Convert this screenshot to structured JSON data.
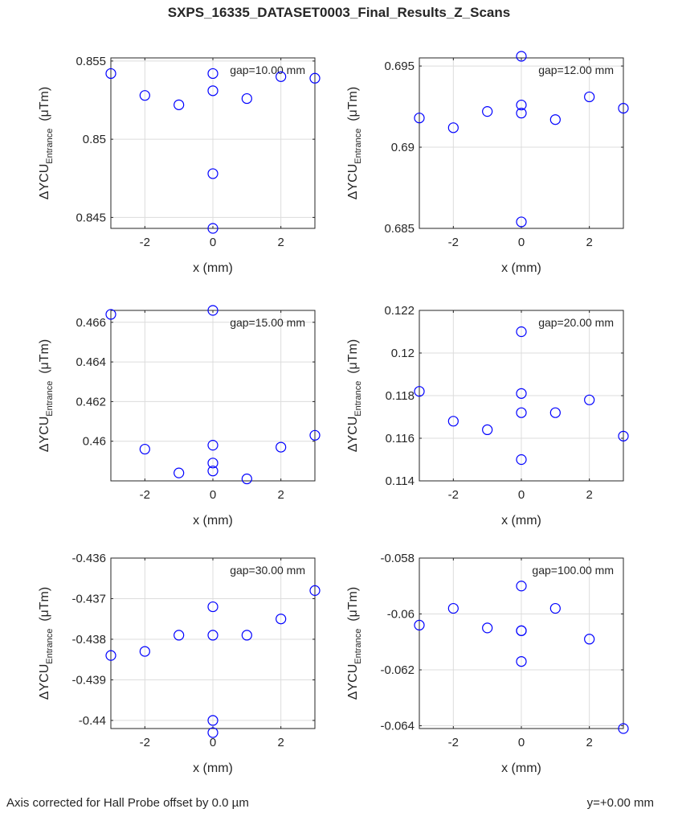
{
  "title": "SXPS_16335_DATASET0003_Final_Results_Z_Scans",
  "footer": {
    "left": "Axis corrected for Hall Probe offset by 0.0 µm",
    "right": "y=+0.00 mm"
  },
  "colors": {
    "marker": "#0000ff",
    "axis": "#262626",
    "grid": "#dcdcdc"
  },
  "chart_data": [
    {
      "type": "scatter",
      "annotation": "gap=10.00 mm",
      "xlabel": "x (mm)",
      "ylabel_main": "ΔYCU",
      "ylabel_sub": "Entrance",
      "ylabel_unit": "(μTm)",
      "xlim": [
        -3,
        3
      ],
      "ylim": [
        0.8443,
        0.8552
      ],
      "grid": true,
      "xticks": [
        -2,
        0,
        2
      ],
      "xtick_labels": [
        "-2",
        "0",
        "2"
      ],
      "yticks": [
        0.845,
        0.85,
        0.855
      ],
      "ytick_labels": [
        "0.845",
        "0.85",
        "0.855"
      ],
      "x": [
        -3,
        -2,
        -1,
        0,
        0,
        0,
        0,
        1,
        2,
        3
      ],
      "y": [
        0.8542,
        0.8528,
        0.8522,
        0.8542,
        0.8531,
        0.8478,
        0.8443,
        0.8526,
        0.854,
        0.8539
      ]
    },
    {
      "type": "scatter",
      "annotation": "gap=12.00 mm",
      "xlabel": "x (mm)",
      "ylabel_main": "ΔYCU",
      "ylabel_sub": "Entrance",
      "ylabel_unit": "(μTm)",
      "xlim": [
        -3,
        3
      ],
      "ylim": [
        0.685,
        0.6955
      ],
      "grid": true,
      "xticks": [
        -2,
        0,
        2
      ],
      "xtick_labels": [
        "-2",
        "0",
        "2"
      ],
      "yticks": [
        0.685,
        0.69,
        0.695
      ],
      "ytick_labels": [
        "0.685",
        "0.69",
        "0.695"
      ],
      "x": [
        -3,
        -2,
        -1,
        0,
        0,
        0,
        0,
        1,
        2,
        3
      ],
      "y": [
        0.6918,
        0.6912,
        0.6922,
        0.6956,
        0.6926,
        0.6921,
        0.6854,
        0.6917,
        0.6931,
        0.6924
      ]
    },
    {
      "type": "scatter",
      "annotation": "gap=15.00 mm",
      "xlabel": "x (mm)",
      "ylabel_main": "ΔYCU",
      "ylabel_sub": "Entrance",
      "ylabel_unit": "(μTm)",
      "xlim": [
        -3,
        3
      ],
      "ylim": [
        0.458,
        0.4666
      ],
      "grid": true,
      "xticks": [
        -2,
        0,
        2
      ],
      "xtick_labels": [
        "-2",
        "0",
        "2"
      ],
      "yticks": [
        0.46,
        0.462,
        0.464,
        0.466
      ],
      "ytick_labels": [
        "0.46",
        "0.462",
        "0.464",
        "0.466"
      ],
      "x": [
        -3,
        -2,
        -1,
        0,
        0,
        0,
        0,
        1,
        2,
        3
      ],
      "y": [
        0.4664,
        0.4596,
        0.4584,
        0.4666,
        0.4598,
        0.4589,
        0.4585,
        0.4581,
        0.4597,
        0.4603
      ]
    },
    {
      "type": "scatter",
      "annotation": "gap=20.00 mm",
      "xlabel": "x (mm)",
      "ylabel_main": "ΔYCU",
      "ylabel_sub": "Entrance",
      "ylabel_unit": "(μTm)",
      "xlim": [
        -3,
        3
      ],
      "ylim": [
        0.114,
        0.122
      ],
      "grid": true,
      "xticks": [
        -2,
        0,
        2
      ],
      "xtick_labels": [
        "-2",
        "0",
        "2"
      ],
      "yticks": [
        0.114,
        0.116,
        0.118,
        0.12,
        0.122
      ],
      "ytick_labels": [
        "0.114",
        "0.116",
        "0.118",
        "0.12",
        "0.122"
      ],
      "x": [
        -3,
        -2,
        -1,
        0,
        0,
        0,
        0,
        1,
        2,
        3
      ],
      "y": [
        0.1182,
        0.1168,
        0.1164,
        0.121,
        0.1181,
        0.1172,
        0.115,
        0.1172,
        0.1178,
        0.1161
      ]
    },
    {
      "type": "scatter",
      "annotation": "gap=30.00 mm",
      "xlabel": "x (mm)",
      "ylabel_main": "ΔYCU",
      "ylabel_sub": "Entrance",
      "ylabel_unit": "(μTm)",
      "xlim": [
        -3,
        3
      ],
      "ylim": [
        -0.4402,
        -0.436
      ],
      "grid": true,
      "xticks": [
        -2,
        0,
        2
      ],
      "xtick_labels": [
        "-2",
        "0",
        "2"
      ],
      "yticks": [
        -0.44,
        -0.439,
        -0.438,
        -0.437,
        -0.436
      ],
      "ytick_labels": [
        "-0.44",
        "-0.439",
        "-0.438",
        "-0.437",
        "-0.436"
      ],
      "x": [
        -3,
        -2,
        -1,
        0,
        0,
        0,
        0,
        1,
        2,
        3
      ],
      "y": [
        -0.4384,
        -0.4383,
        -0.4379,
        -0.4372,
        -0.4379,
        -0.44,
        -0.4403,
        -0.4379,
        -0.4375,
        -0.4368
      ]
    },
    {
      "type": "scatter",
      "annotation": "gap=100.00 mm",
      "xlabel": "x (mm)",
      "ylabel_main": "ΔYCU",
      "ylabel_sub": "Entrance",
      "ylabel_unit": "(μTm)",
      "xlim": [
        -3,
        3
      ],
      "ylim": [
        -0.0641,
        -0.058
      ],
      "grid": true,
      "xticks": [
        -2,
        0,
        2
      ],
      "xtick_labels": [
        "-2",
        "0",
        "2"
      ],
      "yticks": [
        -0.064,
        -0.062,
        -0.06,
        -0.058
      ],
      "ytick_labels": [
        "-0.064",
        "-0.062",
        "-0.06",
        "-0.058"
      ],
      "x": [
        -3,
        -2,
        -1,
        0,
        0,
        0,
        0,
        1,
        2,
        3
      ],
      "y": [
        -0.0604,
        -0.0598,
        -0.0605,
        -0.059,
        -0.0606,
        -0.0617,
        -0.0606,
        -0.0598,
        -0.0609,
        -0.0641
      ]
    }
  ]
}
